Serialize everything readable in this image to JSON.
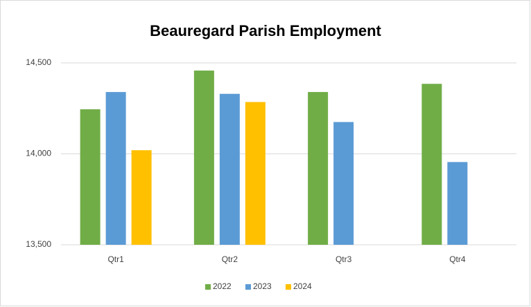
{
  "chart_data": {
    "type": "bar",
    "title": "Beauregard Parish Employment",
    "categories": [
      "Qtr1",
      "Qtr2",
      "Qtr3",
      "Qtr4"
    ],
    "series": [
      {
        "name": "2022",
        "color": "#70ad47",
        "values": [
          14245,
          14458,
          14340,
          14385
        ]
      },
      {
        "name": "2023",
        "color": "#5b9bd5",
        "values": [
          14340,
          14330,
          14175,
          13955
        ]
      },
      {
        "name": "2024",
        "color": "#ffc000",
        "values": [
          14020,
          14285,
          null,
          null
        ]
      }
    ],
    "ylim": [
      13500,
      14500
    ],
    "yticks": [
      {
        "value": 13500,
        "label": "13,500"
      },
      {
        "value": 14000,
        "label": "14,000"
      },
      {
        "value": 14500,
        "label": "14,500"
      }
    ],
    "grid": true,
    "legend": "bottom"
  }
}
